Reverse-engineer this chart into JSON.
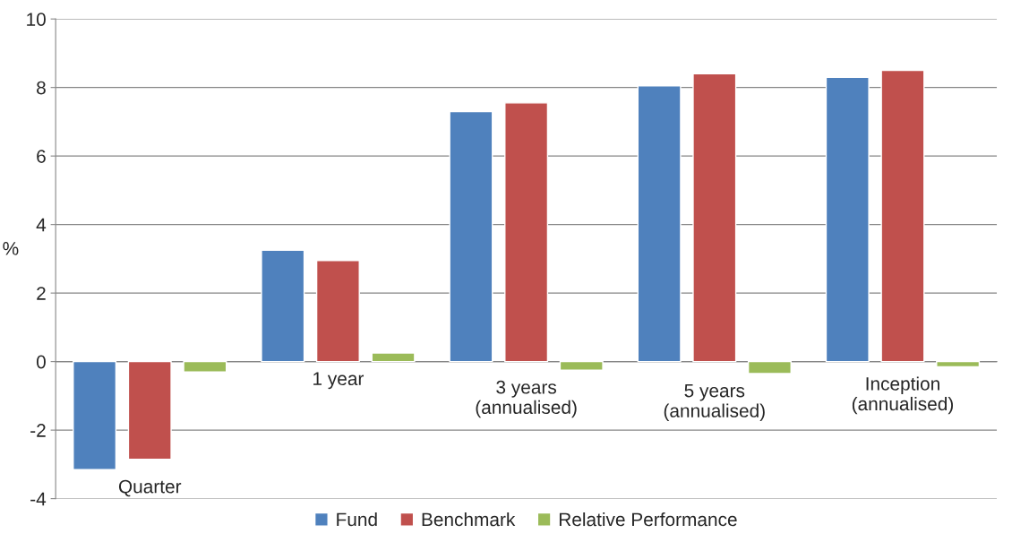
{
  "chart_data": {
    "type": "bar",
    "ylabel": "%",
    "categories": [
      "Quarter",
      "1 year",
      "3 years\n(annualised)",
      "5 years\n(annualised)",
      "Inception\n(annualised)"
    ],
    "series": [
      {
        "name": "Fund",
        "color": "#4f81bd",
        "values": [
          -3.15,
          3.25,
          7.3,
          8.05,
          8.3
        ]
      },
      {
        "name": "Benchmark",
        "color": "#c0504d",
        "values": [
          -2.85,
          2.95,
          7.55,
          8.4,
          8.5
        ]
      },
      {
        "name": "Relative Performance",
        "color": "#9bbb59",
        "values": [
          -0.3,
          0.25,
          -0.25,
          -0.35,
          -0.15
        ]
      }
    ],
    "ylim": [
      -4,
      10
    ],
    "yticks": [
      -4,
      -2,
      0,
      2,
      4,
      6,
      8,
      10
    ],
    "grid": "y",
    "legend": "bottom"
  }
}
